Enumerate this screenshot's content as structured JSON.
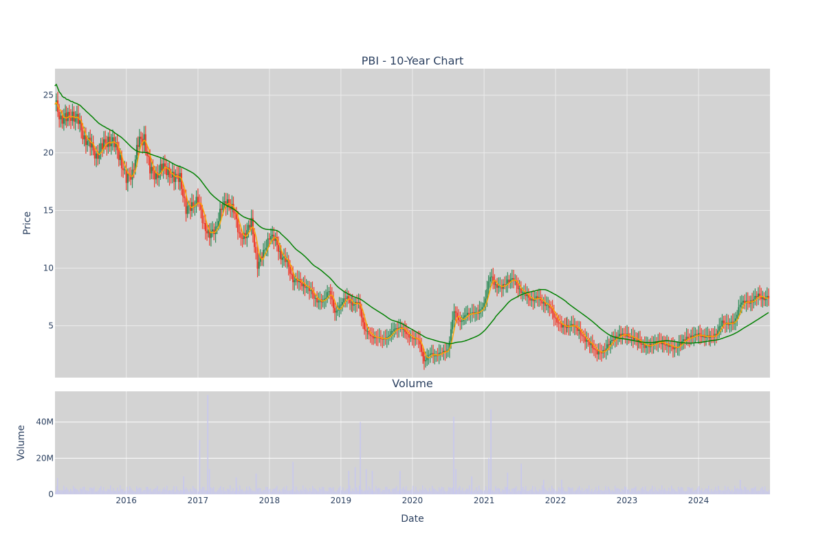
{
  "colors": {
    "panel_bg": "#d3d3d3",
    "grid": "#ebebeb",
    "up": "#2e8b57",
    "down": "#ef3b2c",
    "ma_short": "#ffa500",
    "ma_long": "#008000",
    "volume": "#c8c8ee",
    "text": "#2a3f5f"
  },
  "chart_data": [
    {
      "type": "candlestick",
      "title": "PBI - 10-Year Chart",
      "xlabel": "",
      "ylabel": "Price",
      "ylim": [
        0.5,
        27.3
      ],
      "yticks": [
        5,
        10,
        15,
        20,
        25
      ],
      "xlim": [
        "2015-01-02",
        "2024-12-31"
      ],
      "grid": true,
      "series": [
        {
          "name": "Close (monthly approx.)",
          "x": [
            "2015-01",
            "2015-02",
            "2015-03",
            "2015-04",
            "2015-05",
            "2015-06",
            "2015-07",
            "2015-08",
            "2015-09",
            "2015-10",
            "2015-11",
            "2015-12",
            "2016-01",
            "2016-02",
            "2016-03",
            "2016-04",
            "2016-05",
            "2016-06",
            "2016-07",
            "2016-08",
            "2016-09",
            "2016-10",
            "2016-11",
            "2016-12",
            "2017-01",
            "2017-02",
            "2017-03",
            "2017-04",
            "2017-05",
            "2017-06",
            "2017-07",
            "2017-08",
            "2017-09",
            "2017-10",
            "2017-11",
            "2017-12",
            "2018-01",
            "2018-02",
            "2018-03",
            "2018-04",
            "2018-05",
            "2018-06",
            "2018-07",
            "2018-08",
            "2018-09",
            "2018-10",
            "2018-11",
            "2018-12",
            "2019-01",
            "2019-02",
            "2019-03",
            "2019-04",
            "2019-05",
            "2019-06",
            "2019-07",
            "2019-08",
            "2019-09",
            "2019-10",
            "2019-11",
            "2019-12",
            "2020-01",
            "2020-02",
            "2020-03",
            "2020-04",
            "2020-05",
            "2020-06",
            "2020-07",
            "2020-08",
            "2020-09",
            "2020-10",
            "2020-11",
            "2020-12",
            "2021-01",
            "2021-02",
            "2021-03",
            "2021-04",
            "2021-05",
            "2021-06",
            "2021-07",
            "2021-08",
            "2021-09",
            "2021-10",
            "2021-11",
            "2021-12",
            "2022-01",
            "2022-02",
            "2022-03",
            "2022-04",
            "2022-05",
            "2022-06",
            "2022-07",
            "2022-08",
            "2022-09",
            "2022-10",
            "2022-11",
            "2022-12",
            "2023-01",
            "2023-02",
            "2023-03",
            "2023-04",
            "2023-05",
            "2023-06",
            "2023-07",
            "2023-08",
            "2023-09",
            "2023-10",
            "2023-11",
            "2023-12",
            "2024-01",
            "2024-02",
            "2024-03",
            "2024-04",
            "2024-05",
            "2024-06",
            "2024-07",
            "2024-08",
            "2024-09",
            "2024-10",
            "2024-11",
            "2024-12"
          ],
          "values": [
            24.2,
            23.2,
            22.8,
            23.5,
            22.6,
            21.4,
            20.6,
            19.8,
            20.5,
            21.2,
            20.7,
            19.6,
            17.6,
            18.3,
            20.8,
            21.3,
            18.5,
            18.0,
            18.8,
            18.4,
            17.8,
            17.9,
            15.0,
            15.4,
            16.0,
            13.6,
            12.9,
            13.3,
            15.4,
            15.6,
            15.2,
            12.7,
            12.9,
            14.0,
            10.2,
            11.3,
            12.8,
            12.4,
            11.0,
            10.5,
            9.0,
            8.8,
            8.5,
            7.9,
            7.2,
            7.0,
            8.2,
            6.0,
            7.0,
            7.4,
            6.9,
            6.9,
            4.8,
            4.0,
            4.1,
            3.7,
            4.2,
            4.6,
            5.0,
            4.2,
            4.0,
            3.7,
            2.0,
            2.5,
            2.5,
            2.6,
            3.0,
            6.2,
            5.4,
            5.9,
            6.2,
            6.0,
            7.0,
            9.2,
            8.6,
            8.2,
            9.0,
            8.9,
            8.2,
            7.6,
            7.3,
            7.4,
            7.0,
            6.6,
            5.6,
            4.9,
            5.0,
            5.0,
            4.6,
            3.7,
            3.4,
            2.6,
            2.8,
            3.4,
            4.0,
            4.2,
            4.2,
            3.9,
            3.7,
            3.2,
            3.3,
            3.6,
            3.5,
            3.3,
            3.0,
            3.5,
            3.9,
            4.1,
            4.2,
            4.1,
            4.0,
            4.3,
            5.3,
            5.2,
            5.2,
            7.0,
            7.0,
            7.2,
            7.6,
            7.4
          ]
        },
        {
          "name": "Short moving average",
          "color": "#ffa500"
        },
        {
          "name": "Long moving average",
          "color": "#008000"
        }
      ]
    },
    {
      "type": "bar",
      "title": "Volume",
      "xlabel": "Date",
      "ylabel": "Volume",
      "ylim": [
        0,
        57000000
      ],
      "yticks": [
        {
          "value": 0,
          "label": "0"
        },
        {
          "value": 20000000,
          "label": "20M"
        },
        {
          "value": 40000000,
          "label": "40M"
        }
      ],
      "xticks": [
        "2016",
        "2017",
        "2018",
        "2019",
        "2020",
        "2021",
        "2022",
        "2023",
        "2024"
      ],
      "grid": true,
      "spikes": [
        {
          "date": "2015-01-15",
          "value": 9000000
        },
        {
          "date": "2016-10-20",
          "value": 10000000
        },
        {
          "date": "2017-01-10",
          "value": 30000000
        },
        {
          "date": "2017-02-20",
          "value": 55000000
        },
        {
          "date": "2017-03-01",
          "value": 14000000
        },
        {
          "date": "2017-07-15",
          "value": 9500000
        },
        {
          "date": "2017-10-25",
          "value": 11500000
        },
        {
          "date": "2018-05-01",
          "value": 18000000
        },
        {
          "date": "2019-02-10",
          "value": 13000000
        },
        {
          "date": "2019-03-15",
          "value": 15000000
        },
        {
          "date": "2019-04-10",
          "value": 40000000
        },
        {
          "date": "2019-05-10",
          "value": 14000000
        },
        {
          "date": "2019-06-10",
          "value": 13000000
        },
        {
          "date": "2019-10-30",
          "value": 13000000
        },
        {
          "date": "2020-07-30",
          "value": 43000000
        },
        {
          "date": "2020-08-10",
          "value": 14000000
        },
        {
          "date": "2020-10-30",
          "value": 10000000
        },
        {
          "date": "2021-01-25",
          "value": 20000000
        },
        {
          "date": "2021-02-05",
          "value": 47000000
        },
        {
          "date": "2021-05-01",
          "value": 12000000
        },
        {
          "date": "2021-07-10",
          "value": 17000000
        },
        {
          "date": "2021-11-01",
          "value": 8000000
        },
        {
          "date": "2022-02-01",
          "value": 8000000
        },
        {
          "date": "2024-08-01",
          "value": 8000000
        }
      ]
    }
  ]
}
